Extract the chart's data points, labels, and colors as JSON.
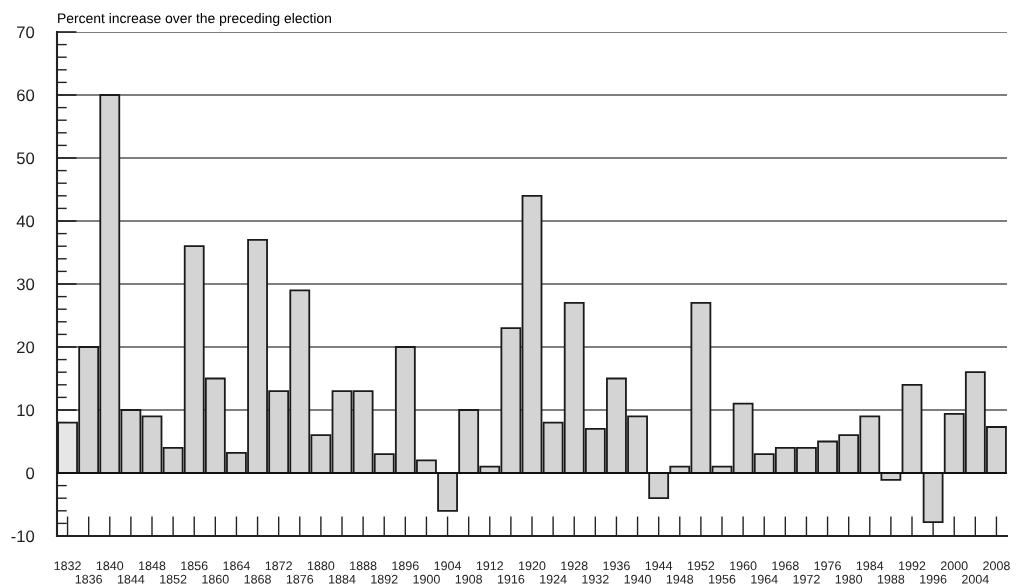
{
  "chart_data": {
    "type": "bar",
    "ylabel": "Percent increase over the preceding election",
    "categories": [
      "1832",
      "1836",
      "1840",
      "1844",
      "1848",
      "1852",
      "1856",
      "1860",
      "1864",
      "1868",
      "1872",
      "1876",
      "1880",
      "1884",
      "1888",
      "1892",
      "1896",
      "1900",
      "1904",
      "1908",
      "1912",
      "1916",
      "1920",
      "1924",
      "1928",
      "1932",
      "1936",
      "1940",
      "1944",
      "1948",
      "1952",
      "1956",
      "1960",
      "1964",
      "1968",
      "1972",
      "1976",
      "1980",
      "1984",
      "1988",
      "1992",
      "1996",
      "2000",
      "2004",
      "2008"
    ],
    "values": [
      8,
      20,
      60,
      10,
      9,
      4,
      36,
      15,
      3.2,
      37,
      13,
      29,
      6,
      13,
      13,
      3,
      20,
      2,
      -6,
      10,
      1,
      23,
      44,
      8,
      27,
      7,
      15,
      9,
      -4,
      1,
      27,
      1,
      11,
      3,
      4,
      4,
      5,
      6,
      9,
      -1.1,
      14,
      -7.8,
      9.4,
      16,
      7.3
    ],
    "colors": [
      "#e6e6e6",
      "#d4d4d4",
      "#d4d4d4",
      "#d4d4d4",
      "#d4d4d4",
      "#d4d4d4",
      "#d4d4d4",
      "#d4d4d4",
      "#d4d4d4",
      "#d4d4d4",
      "#d4d4d4",
      "#d4d4d4",
      "#d4d4d4",
      "#d4d4d4",
      "#d4d4d4",
      "#d4d4d4",
      "#d4d4d4",
      "#d4d4d4",
      "#d4d4d4",
      "#d4d4d4",
      "#d4d4d4",
      "#d4d4d4",
      "#d4d4d4",
      "#d4d4d4",
      "#d4d4d4",
      "#d4d4d4",
      "#d4d4d4",
      "#d4d4d4",
      "#d4d4d4",
      "#d4d4d4",
      "#d4d4d4",
      "#d4d4d4",
      "#d4d4d4",
      "#d4d4d4",
      "#d4d4d4",
      "#d4d4d4",
      "#d4d4d4",
      "#d4d4d4",
      "#d4d4d4",
      "#d4d4d4",
      "#d4d4d4",
      "#d4d4d4",
      "#d4d4d4",
      "#d4d4d4",
      "#d4d4d4"
    ],
    "ylim": [
      -10,
      70
    ],
    "yticks": [
      -10,
      0,
      10,
      20,
      30,
      40,
      50,
      60,
      70
    ],
    "grid": "y"
  }
}
